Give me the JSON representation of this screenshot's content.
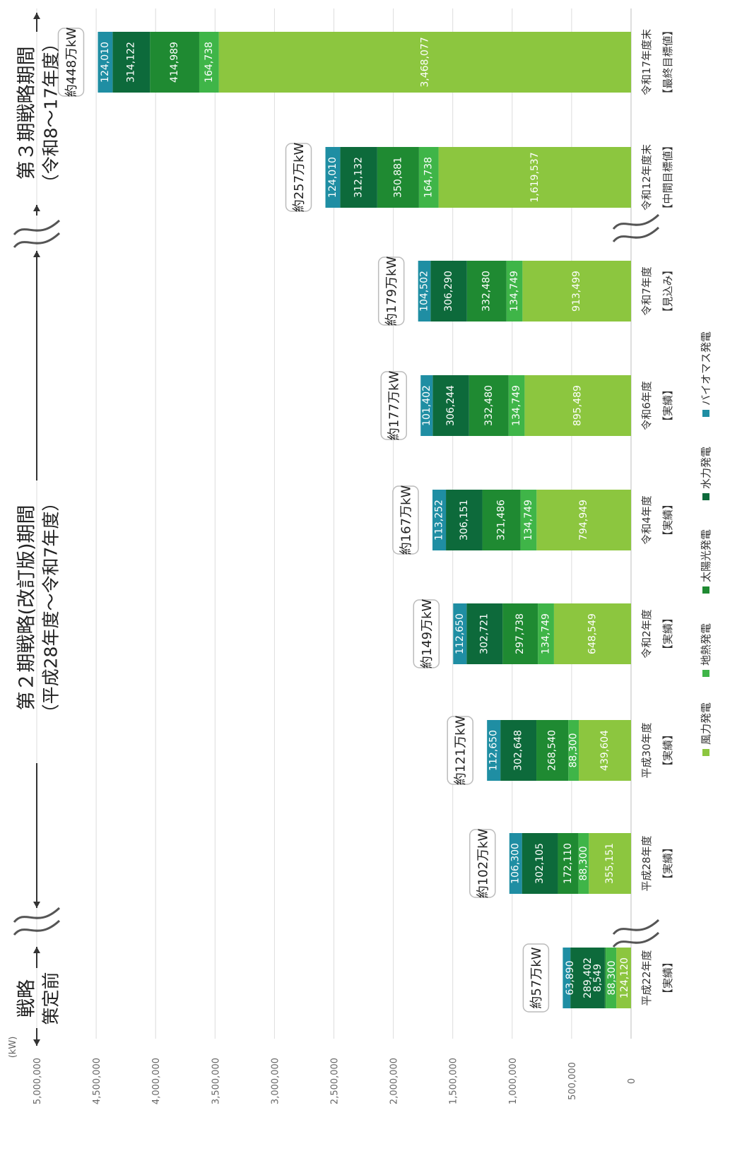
{
  "chart_data": {
    "type": "bar",
    "stacked": true,
    "orientation": "horizontal",
    "rotated": true,
    "unit_label": "(kW)",
    "xlim": [
      0,
      5000000
    ],
    "ticks": [
      {
        "value": 0,
        "label": "0"
      },
      {
        "value": 500000,
        "label": "500,000"
      },
      {
        "value": 1000000,
        "label": "1,000,000"
      },
      {
        "value": 1500000,
        "label": "1,500,000"
      },
      {
        "value": 2000000,
        "label": "2,000,000"
      },
      {
        "value": 2500000,
        "label": "2,500,000"
      },
      {
        "value": 3000000,
        "label": "3,000,000"
      },
      {
        "value": 3500000,
        "label": "3,500,000"
      },
      {
        "value": 4000000,
        "label": "4,000,000"
      },
      {
        "value": 4500000,
        "label": "4,500,000"
      },
      {
        "value": 5000000,
        "label": "5,000,000"
      }
    ],
    "categories": [
      {
        "name": "平成22年度",
        "sub": "【実績】"
      },
      {
        "name": "平成28年度",
        "sub": "【実績】"
      },
      {
        "name": "平成30年度",
        "sub": "【実績】"
      },
      {
        "name": "令和2年度",
        "sub": "【実績】"
      },
      {
        "name": "令和4年度",
        "sub": "【実績】"
      },
      {
        "name": "令和6年度",
        "sub": "【実績】"
      },
      {
        "name": "令和7年度",
        "sub": "【見込み】"
      },
      {
        "name": "令和12年度末",
        "sub": "【中間目標値】"
      },
      {
        "name": "令和17年度末",
        "sub": "【最終目標値】"
      }
    ],
    "series": [
      {
        "name": "風力発電",
        "color": "#8cc63f",
        "values": [
          124120,
          355151,
          439604,
          648549,
          794949,
          895489,
          913499,
          1619537,
          3468077
        ],
        "labels": [
          "124,120",
          "355,151",
          "439,604",
          "648,549",
          "794,949",
          "895,489",
          "913,499",
          "1,619,537",
          "3,468,077"
        ]
      },
      {
        "name": "地熱発電",
        "color": "#3fb548",
        "values": [
          88300,
          88300,
          88300,
          134749,
          134749,
          134749,
          134749,
          164738,
          164738
        ],
        "labels": [
          "88,300",
          "88,300",
          "88,300",
          "134,749",
          "134,749",
          "134,749",
          "134,749",
          "164,738",
          "164,738"
        ]
      },
      {
        "name": "太陽光発電",
        "color": "#1f8a32",
        "values": [
          8549,
          172110,
          268540,
          297738,
          321486,
          332480,
          332480,
          350881,
          414989
        ],
        "labels": [
          "8,549",
          "172,110",
          "268,540",
          "297,738",
          "321,486",
          "332,480",
          "332,480",
          "350,881",
          "414,989"
        ]
      },
      {
        "name": "水力発電",
        "color": "#0d6a3b",
        "values": [
          289402,
          302105,
          302648,
          302721,
          306151,
          306244,
          306290,
          312132,
          314122
        ],
        "labels": [
          "289,402",
          "302,105",
          "302,648",
          "302,721",
          "306,151",
          "306,244",
          "306,290",
          "312,132",
          "314,122"
        ]
      },
      {
        "name": "バイオマス発電",
        "color": "#1f8ea3",
        "values": [
          63890,
          106300,
          112650,
          112650,
          113252,
          101402,
          104502,
          124010,
          124010
        ],
        "labels": [
          "63,890",
          "106,300",
          "112,650",
          "112,650",
          "113,252",
          "101,402",
          "104,502",
          "124,010",
          "124,010"
        ]
      }
    ],
    "totals": [
      "約57万kW",
      "約102万kW",
      "約121万kW",
      "約149万kW",
      "約167万kW",
      "約177万kW",
      "約179万kW",
      "約257万kW",
      "約448万kW"
    ],
    "legend_order": [
      "風力発電",
      "地熱発電",
      "太陽光発電",
      "水力発電",
      "バイオマス発電"
    ],
    "periods": [
      {
        "title": "戦略",
        "sub": "策定前"
      },
      {
        "title": "第２期戦略(改訂版)期間",
        "sub": "（平成28年度～令和7年度）"
      },
      {
        "title": "第３期戦略期間",
        "sub": "（令和8～17年度）"
      }
    ],
    "grid": true
  }
}
